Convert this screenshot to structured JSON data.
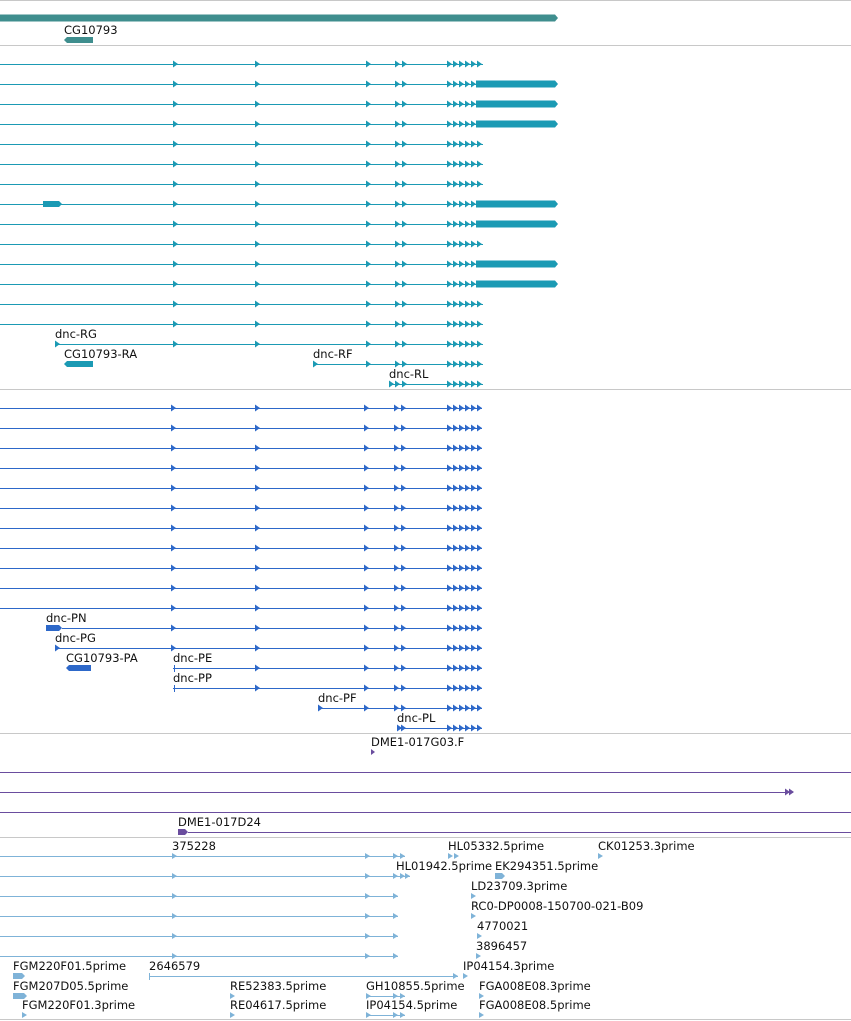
{
  "colors": {
    "divider": "#c8c8c8",
    "gene": "#3f8e8e",
    "transcript_a": "#1b9ab4",
    "transcript_b": "#2d68c9",
    "clone": "#6a4d9e",
    "est": "#7fb3d8"
  },
  "tracks": {
    "gene": {
      "labels": [
        "CG10793"
      ]
    },
    "transcripts_a": {
      "labels": [
        "dnc-RG",
        "CG10793-RA",
        "dnc-RF",
        "dnc-RL"
      ]
    },
    "transcripts_b": {
      "labels": [
        "dnc-PN",
        "dnc-PG",
        "CG10793-PA",
        "dnc-PE",
        "dnc-PP",
        "dnc-PF",
        "dnc-PL"
      ]
    },
    "clones": {
      "labels": [
        "DME1-017G03.F",
        "DME1-017D24"
      ]
    },
    "ests": {
      "labels": [
        "375228",
        "HL05332.5prime",
        "CK01253.3prime",
        "HL01942.5prime",
        "EK294351.5prime",
        "LD23709.3prime",
        "RC0-DP0008-150700-021-B09",
        "4770021",
        "3896457",
        "FGM220F01.5prime",
        "2646579",
        "IP04154.3prime",
        "FGM207D05.5prime",
        "RE52383.5prime",
        "GH10855.5prime",
        "FGA008E08.3prime",
        "FGM220F01.3prime",
        "RE04617.5prime",
        "IP04154.5prime",
        "FGA008E08.5prime"
      ]
    }
  }
}
